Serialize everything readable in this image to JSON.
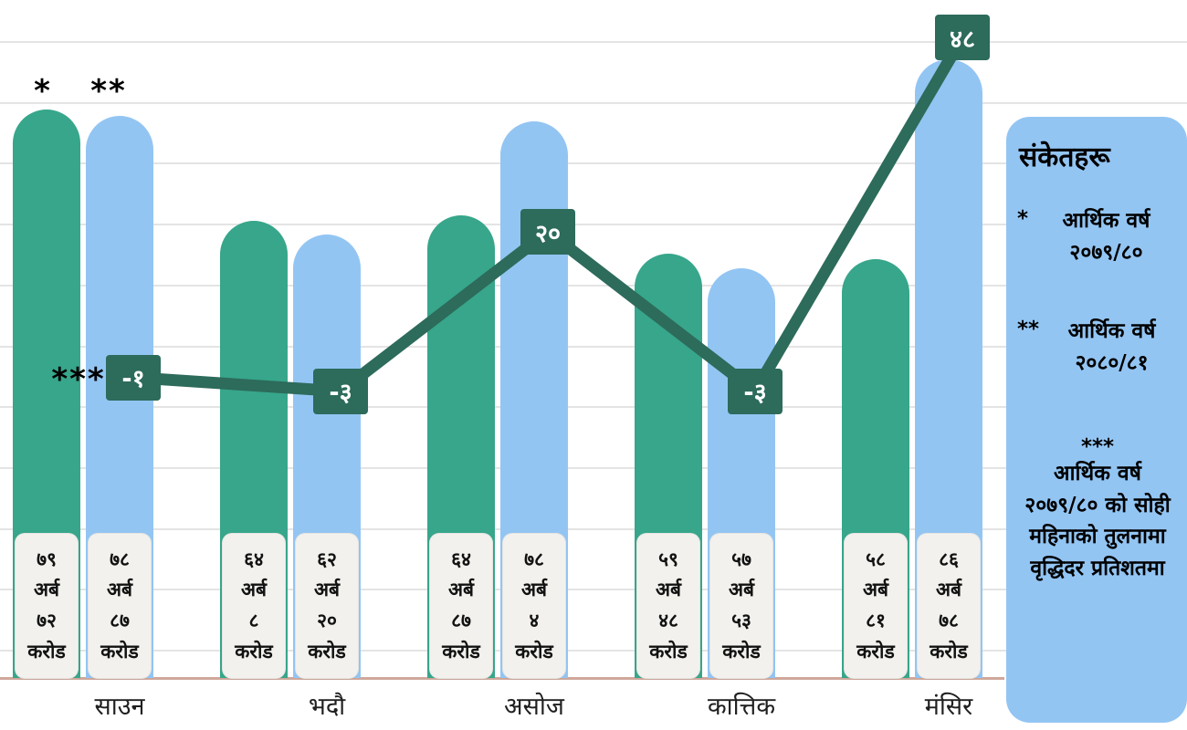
{
  "chart_data": {
    "type": "bar+line",
    "title": "",
    "categories": [
      "साउन",
      "भदौ",
      "असोज",
      "कात्तिक",
      "मंसिर"
    ],
    "ylim": [
      0,
      90
    ],
    "line_ylim": [
      -10,
      52
    ],
    "grid": true,
    "legend_position": "right",
    "series": [
      {
        "name": "आर्थिक वर्ष २०७९/८०",
        "marker": "*",
        "kind": "bar",
        "color": "#37A68B",
        "values": [
          79.72,
          64.08,
          64.87,
          59.48,
          58.81
        ],
        "value_labels": [
          [
            "७९",
            "अर्ब",
            "७२",
            "करोड"
          ],
          [
            "६४",
            "अर्ब",
            "८",
            "करोड"
          ],
          [
            "६४",
            "अर्ब",
            "८७",
            "करोड"
          ],
          [
            "५९",
            "अर्ब",
            "४८",
            "करोड"
          ],
          [
            "५८",
            "अर्ब",
            "८१",
            "करोड"
          ]
        ]
      },
      {
        "name": "आर्थिक वर्ष २०८०/८१",
        "marker": "**",
        "kind": "bar",
        "color": "#93C5F3",
        "values": [
          78.87,
          62.2,
          78.04,
          57.53,
          86.78
        ],
        "value_labels": [
          [
            "७८",
            "अर्ब",
            "८७",
            "करोड"
          ],
          [
            "६२",
            "अर्ब",
            "२०",
            "करोड"
          ],
          [
            "७८",
            "अर्ब",
            "४",
            "करोड"
          ],
          [
            "५७",
            "अर्ब",
            "५३",
            "करोड"
          ],
          [
            "८६",
            "अर्ब",
            "७८",
            "करोड"
          ]
        ]
      },
      {
        "name": "आर्थिक वर्ष २०७९/८० को सोही महिनाको तुलनामा वृद्धिदर प्रतिशतमा",
        "marker": "***",
        "kind": "line",
        "color": "#2D6B5B",
        "values": [
          -1,
          -3,
          20,
          -3,
          48
        ],
        "value_labels": [
          "-१",
          "-३",
          "२०",
          "-३",
          "४८"
        ]
      }
    ]
  },
  "legend": {
    "title": "संकेतहरू",
    "items": [
      {
        "marker": "*",
        "text": "आर्थिक वर्ष २०७९/८०"
      },
      {
        "marker": "**",
        "text": "आर्थिक वर्ष २०८०/८१"
      },
      {
        "marker": "***",
        "text": "आर्थिक वर्ष २०७९/८० को सोही महिनाको तुलनामा वृद्धिदर प्रतिशतमा"
      }
    ]
  },
  "colors": {
    "bar_2079_80": "#37A68B",
    "bar_2080_81": "#93C5F3",
    "growth_line": "#2D6B5B",
    "legend_bg": "#93C5F3",
    "value_box_bg": "#F2F1ED",
    "baseline": "#cfa79a",
    "gridline": "#e4e4e4"
  }
}
